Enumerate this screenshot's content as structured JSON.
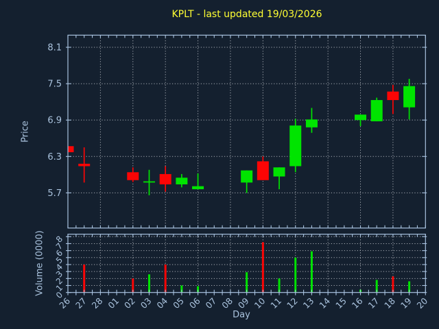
{
  "title": {
    "text": "KPLT - last updated 19/03/2026"
  },
  "colors": {
    "background": "#14202f",
    "axis_frame": "#a9c3e0",
    "label_text": "#aac3de",
    "grid": "#c2c6cc",
    "title_text": "#ffff33",
    "up": "#00e400",
    "down": "#fb0505"
  },
  "price_axis": {
    "label": "Price",
    "ticks": [
      5.7,
      6.3,
      6.9,
      7.5,
      8.1
    ],
    "ylim": [
      5.12,
      8.3
    ]
  },
  "volume_axis": {
    "label": "Volume (0000)",
    "ticks": [
      0,
      1,
      2,
      3,
      4,
      5,
      6,
      7,
      8
    ],
    "ymax": 8.35
  },
  "x_axis": {
    "label": "Day",
    "gridline_interval": 2
  },
  "chart_data": {
    "type": "candlestick+volume",
    "title": "KPLT - last updated 19/03/2026",
    "x_categories": [
      "26",
      "27",
      "28",
      "01",
      "02",
      "03",
      "04",
      "05",
      "06",
      "07",
      "08",
      "09",
      "10",
      "11",
      "12",
      "13",
      "14",
      "15",
      "16",
      "17",
      "18",
      "19",
      "20"
    ],
    "legend": "none",
    "grid": "dotted",
    "candles": [
      {
        "day": "26",
        "open": 6.47,
        "high": 6.47,
        "low": 6.37,
        "close": 6.37,
        "volume": 0.0
      },
      {
        "day": "27",
        "open": 6.18,
        "high": 6.45,
        "low": 5.87,
        "close": 6.14,
        "volume": 4.0
      },
      {
        "day": "02",
        "open": 6.04,
        "high": 6.12,
        "low": 5.88,
        "close": 5.91,
        "volume": 2.0
      },
      {
        "day": "03",
        "open": 5.87,
        "high": 6.08,
        "low": 5.66,
        "close": 5.89,
        "volume": 2.6
      },
      {
        "day": "04",
        "open": 6.01,
        "high": 6.14,
        "low": 5.72,
        "close": 5.84,
        "volume": 4.0
      },
      {
        "day": "05",
        "open": 5.84,
        "high": 6.01,
        "low": 5.79,
        "close": 5.95,
        "volume": 1.0
      },
      {
        "day": "06",
        "open": 5.76,
        "high": 6.02,
        "low": 5.76,
        "close": 5.81,
        "volume": 0.9
      },
      {
        "day": "09",
        "open": 5.87,
        "high": 6.07,
        "low": 5.7,
        "close": 6.07,
        "volume": 2.9
      },
      {
        "day": "10",
        "open": 6.22,
        "high": 6.3,
        "low": 5.91,
        "close": 5.91,
        "volume": 7.2
      },
      {
        "day": "11",
        "open": 5.97,
        "high": 6.12,
        "low": 5.76,
        "close": 6.12,
        "volume": 2.0
      },
      {
        "day": "12",
        "open": 6.14,
        "high": 6.92,
        "low": 6.04,
        "close": 6.81,
        "volume": 5.0
      },
      {
        "day": "13",
        "open": 6.78,
        "high": 7.1,
        "low": 6.69,
        "close": 6.91,
        "volume": 5.9
      },
      {
        "day": "16",
        "open": 6.9,
        "high": 6.99,
        "low": 6.8,
        "close": 6.99,
        "volume": 0.4
      },
      {
        "day": "17",
        "open": 6.88,
        "high": 7.27,
        "low": 6.88,
        "close": 7.23,
        "volume": 1.8
      },
      {
        "day": "18",
        "open": 7.37,
        "high": 7.48,
        "low": 7.0,
        "close": 7.23,
        "volume": 2.3
      },
      {
        "day": "19",
        "open": 7.11,
        "high": 7.58,
        "low": 6.91,
        "close": 7.46,
        "volume": 1.6
      }
    ]
  }
}
